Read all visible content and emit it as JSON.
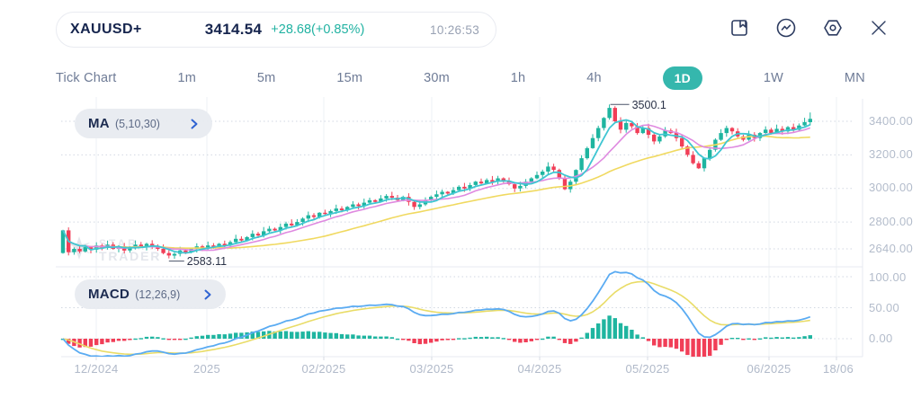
{
  "header": {
    "symbol": "XAUUSD+",
    "price": "3414.54",
    "change": "+28.68(+0.85%)",
    "time": "10:26:53"
  },
  "toolbar": {
    "icons": [
      "save-bookmark",
      "indicator-pulse",
      "settings",
      "close"
    ]
  },
  "timeframes": {
    "items": [
      "Tick Chart",
      "1m",
      "5m",
      "15m",
      "30m",
      "1h",
      "4h",
      "1D",
      "1W",
      "MN"
    ],
    "active": "1D"
  },
  "indicators": {
    "ma": {
      "name": "MA",
      "params": "(5,10,30)"
    },
    "macd": {
      "name": "MACD",
      "params": "(12,26,9)"
    }
  },
  "watermark": {
    "line1": "STAR",
    "line2": "TRADER"
  },
  "chart_data": {
    "type": "candlestick+macd",
    "symbol": "XAUUSD+",
    "x_axis": {
      "labels": [
        "12/2024",
        "2025",
        "02/2025",
        "03/2025",
        "04/2025",
        "05/2025",
        "06/2025",
        "18/06"
      ]
    },
    "price_panel": {
      "yticks": [
        3400,
        3200,
        3000,
        2800,
        2640
      ],
      "ytick_labels": [
        "3400.00",
        "3200.00",
        "3000.00",
        "2800.00",
        "2640.00"
      ],
      "ma_periods": [
        5,
        10,
        30
      ],
      "ma_colors": {
        "ma5": "#3fc6d2",
        "ma10": "#df8ae0",
        "ma30": "#f0d960"
      },
      "first_open": 2615,
      "last_close": 3414.54,
      "annotations": [
        {
          "label": "3500.1",
          "index": 98,
          "value": 3500.1,
          "type": "high"
        },
        {
          "label": "2583.11",
          "index": 19,
          "value": 2583.11,
          "type": "low"
        }
      ],
      "closes": [
        2750,
        2620,
        2640,
        2625,
        2650,
        2635,
        2660,
        2645,
        2665,
        2640,
        2655,
        2630,
        2645,
        2665,
        2650,
        2670,
        2655,
        2640,
        2615,
        2600,
        2610,
        2630,
        2620,
        2640,
        2655,
        2645,
        2660,
        2650,
        2670,
        2660,
        2680,
        2700,
        2690,
        2710,
        2730,
        2720,
        2745,
        2760,
        2750,
        2770,
        2790,
        2780,
        2800,
        2820,
        2840,
        2830,
        2855,
        2850,
        2865,
        2880,
        2870,
        2890,
        2905,
        2895,
        2915,
        2930,
        2920,
        2940,
        2955,
        2945,
        2930,
        2950,
        2920,
        2890,
        2905,
        2930,
        2950,
        2965,
        2980,
        2970,
        2990,
        3010,
        3000,
        3020,
        3040,
        3030,
        3050,
        3040,
        3060,
        3045,
        3025,
        3000,
        3015,
        3040,
        3060,
        3080,
        3100,
        3130,
        3110,
        3060,
        2995,
        3040,
        3110,
        3180,
        3240,
        3300,
        3360,
        3420,
        3480,
        3400,
        3350,
        3390,
        3370,
        3330,
        3360,
        3320,
        3280,
        3310,
        3345,
        3330,
        3300,
        3250,
        3200,
        3150,
        3120,
        3180,
        3230,
        3290,
        3330,
        3360,
        3340,
        3310,
        3290,
        3320,
        3300,
        3330,
        3350,
        3330,
        3355,
        3340,
        3365,
        3350,
        3375,
        3395,
        3414.54
      ]
    },
    "macd_panel": {
      "params": [
        12,
        26,
        9
      ],
      "yticks": [
        100,
        50,
        0
      ],
      "ytick_labels": [
        "100.00",
        "50.00",
        "0.00"
      ],
      "colors": {
        "macd_line": "#5aabf2",
        "signal_line": "#e9dc67",
        "hist_up": "#1fb5a0",
        "hist_down": "#f13e57"
      }
    },
    "colors": {
      "up": "#1fb5a0",
      "down": "#f13e57"
    }
  }
}
